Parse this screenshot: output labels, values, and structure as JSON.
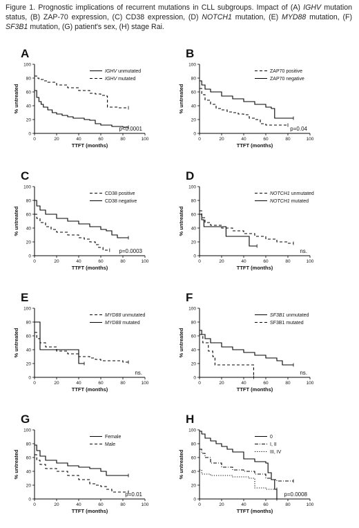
{
  "caption": {
    "parts": [
      {
        "t": "Figure 1. Prognostic implications of recurrent mutations in CLL subgroups. Impact of (A) ",
        "i": false
      },
      {
        "t": "IGHV",
        "i": true
      },
      {
        "t": " mutation status, (B) ZAP-70 expression, (C) CD38 expression, (D) ",
        "i": false
      },
      {
        "t": "NOTCH1",
        "i": true
      },
      {
        "t": " mutation, (E) ",
        "i": false
      },
      {
        "t": "MYD88",
        "i": true
      },
      {
        "t": " mutation, (F) ",
        "i": false
      },
      {
        "t": "SF3B1",
        "i": true
      },
      {
        "t": " mutation, (G) patient's sex, (H) stage Rai.",
        "i": false
      }
    ]
  },
  "chart_data": [
    {
      "type": "line",
      "panel": "A",
      "xlabel": "TTFT (months)",
      "ylabel": "% untreated",
      "xlim": [
        0,
        100
      ],
      "ylim": [
        0,
        100
      ],
      "xticks": [
        "0",
        "20",
        "40",
        "60",
        "80",
        "100"
      ],
      "yticks": [
        "0",
        "20",
        "40",
        "60",
        "80",
        "100"
      ],
      "pvalue": "p<0.0001",
      "series": [
        {
          "name": "IGHV unmutated",
          "name_parts": [
            {
              "t": "IGHV",
              "i": true
            },
            {
              "t": " unmutated",
              "i": false
            }
          ],
          "style": "solid",
          "x": [
            0,
            2,
            4,
            6,
            8,
            12,
            16,
            20,
            25,
            30,
            35,
            40,
            45,
            50,
            55,
            60,
            65,
            70,
            75,
            80,
            85
          ],
          "y": [
            62,
            52,
            46,
            42,
            38,
            34,
            30,
            28,
            26,
            24,
            22,
            22,
            20,
            19,
            14,
            12,
            12,
            10,
            10,
            9,
            9
          ]
        },
        {
          "name": "IGHV mutated",
          "name_parts": [
            {
              "t": "IGHV",
              "i": true
            },
            {
              "t": " mutated",
              "i": false
            }
          ],
          "style": "dashed",
          "x": [
            0,
            2,
            4,
            8,
            12,
            20,
            30,
            40,
            50,
            55,
            60,
            65,
            66,
            70,
            75,
            80,
            85
          ],
          "y": [
            83,
            80,
            78,
            76,
            74,
            70,
            66,
            62,
            58,
            57,
            55,
            54,
            38,
            38,
            37,
            37,
            37
          ]
        }
      ]
    },
    {
      "type": "line",
      "panel": "B",
      "xlabel": "TTFT (months)",
      "ylabel": "% untreated",
      "xlim": [
        0,
        100
      ],
      "ylim": [
        0,
        100
      ],
      "xticks": [
        "0",
        "20",
        "40",
        "60",
        "80",
        "100"
      ],
      "yticks": [
        "0",
        "20",
        "40",
        "60",
        "80",
        "100"
      ],
      "pvalue": "p=0.04",
      "series": [
        {
          "name": "ZAP70 positive",
          "name_parts": [
            {
              "t": "ZAP70 positive",
              "i": false
            }
          ],
          "style": "dashed",
          "x": [
            0,
            2,
            5,
            10,
            15,
            20,
            25,
            30,
            35,
            40,
            45,
            50,
            55,
            60,
            70,
            80
          ],
          "y": [
            65,
            56,
            48,
            42,
            36,
            34,
            31,
            30,
            28,
            27,
            22,
            20,
            14,
            12,
            12,
            12
          ]
        },
        {
          "name": "ZAP70 negative",
          "name_parts": [
            {
              "t": "ZAP70 negative",
              "i": false
            }
          ],
          "style": "solid",
          "x": [
            0,
            2,
            5,
            10,
            20,
            30,
            40,
            50,
            60,
            65,
            68,
            75,
            85
          ],
          "y": [
            76,
            70,
            64,
            60,
            54,
            50,
            46,
            42,
            38,
            36,
            22,
            22,
            22
          ]
        }
      ]
    },
    {
      "type": "line",
      "panel": "C",
      "xlabel": "TTFT (months)",
      "ylabel": "% untreated",
      "xlim": [
        0,
        100
      ],
      "ylim": [
        0,
        100
      ],
      "xticks": [
        "0",
        "20",
        "40",
        "60",
        "80",
        "100"
      ],
      "yticks": [
        "0",
        "20",
        "40",
        "60",
        "80",
        "100"
      ],
      "pvalue": "p=0.0003",
      "series": [
        {
          "name": "CD38 positive",
          "name_parts": [
            {
              "t": "CD38 positive",
              "i": false
            }
          ],
          "style": "dashed",
          "x": [
            0,
            2,
            5,
            10,
            15,
            20,
            30,
            40,
            45,
            50,
            55,
            58,
            62,
            68
          ],
          "y": [
            60,
            54,
            48,
            42,
            38,
            34,
            30,
            26,
            24,
            20,
            16,
            12,
            8,
            8
          ]
        },
        {
          "name": "CD38 negative",
          "name_parts": [
            {
              "t": "CD38 negative",
              "i": false
            }
          ],
          "style": "solid",
          "x": [
            0,
            2,
            5,
            10,
            20,
            30,
            40,
            50,
            60,
            65,
            70,
            75,
            85
          ],
          "y": [
            80,
            72,
            66,
            60,
            54,
            50,
            46,
            42,
            38,
            36,
            30,
            26,
            26
          ]
        }
      ]
    },
    {
      "type": "line",
      "panel": "D",
      "xlabel": "TTFT (months)",
      "ylabel": "% untreated",
      "xlim": [
        0,
        100
      ],
      "ylim": [
        0,
        100
      ],
      "xticks": [
        "0",
        "20",
        "40",
        "60",
        "80",
        "100"
      ],
      "yticks": [
        "0",
        "20",
        "40",
        "60",
        "80",
        "100"
      ],
      "pvalue": "ns.",
      "series": [
        {
          "name": "NOTCH1 unmutated",
          "name_parts": [
            {
              "t": "NOTCH1",
              "i": true
            },
            {
              "t": " unmutated",
              "i": false
            }
          ],
          "style": "dashed",
          "x": [
            0,
            2,
            5,
            10,
            20,
            30,
            40,
            50,
            60,
            70,
            80,
            85
          ],
          "y": [
            65,
            55,
            48,
            44,
            40,
            36,
            32,
            28,
            24,
            20,
            18,
            18
          ]
        },
        {
          "name": "NOTCH1 mutated",
          "name_parts": [
            {
              "t": "NOTCH1",
              "i": true
            },
            {
              "t": " mutated",
              "i": false
            }
          ],
          "style": "solid",
          "x": [
            0,
            2,
            4,
            8,
            24,
            28,
            45,
            48,
            52
          ],
          "y": [
            60,
            52,
            42,
            42,
            28,
            28,
            14,
            14,
            14
          ]
        }
      ]
    },
    {
      "type": "line",
      "panel": "E",
      "xlabel": "TTFT (months)",
      "ylabel": "% untreated",
      "xlim": [
        0,
        100
      ],
      "ylim": [
        0,
        100
      ],
      "xticks": [
        "0",
        "20",
        "40",
        "60",
        "80",
        "100"
      ],
      "yticks": [
        "0",
        "20",
        "40",
        "60",
        "80",
        "100"
      ],
      "pvalue": "ns.",
      "series": [
        {
          "name": "MYD88 unmutated",
          "name_parts": [
            {
              "t": "MYD88",
              "i": true
            },
            {
              "t": " unmutated",
              "i": false
            }
          ],
          "style": "dashed",
          "x": [
            0,
            2,
            5,
            10,
            20,
            30,
            40,
            50,
            55,
            60,
            70,
            80,
            85
          ],
          "y": [
            65,
            56,
            50,
            44,
            38,
            34,
            30,
            28,
            26,
            24,
            24,
            22,
            22
          ]
        },
        {
          "name": "MYD88 mutated",
          "name_parts": [
            {
              "t": "MYD88",
              "i": true
            },
            {
              "t": " mutated",
              "i": false
            }
          ],
          "style": "solid",
          "x": [
            0,
            4,
            5,
            38,
            40,
            45
          ],
          "y": [
            80,
            80,
            40,
            40,
            20,
            20
          ]
        }
      ]
    },
    {
      "type": "line",
      "panel": "F",
      "xlabel": "TTFT (months)",
      "ylabel": "% untreated",
      "xlim": [
        0,
        100
      ],
      "ylim": [
        0,
        100
      ],
      "xticks": [
        "0",
        "20",
        "40",
        "60",
        "80",
        "100"
      ],
      "yticks": [
        "0",
        "20",
        "40",
        "60",
        "80",
        "100"
      ],
      "pvalue": "ns.",
      "series": [
        {
          "name": "SF3B1 unmutated",
          "name_parts": [
            {
              "t": "SF3B1",
              "i": true
            },
            {
              "t": " unmutated",
              "i": false
            }
          ],
          "style": "solid",
          "x": [
            0,
            2,
            5,
            10,
            20,
            30,
            40,
            50,
            60,
            70,
            75,
            85
          ],
          "y": [
            68,
            62,
            56,
            50,
            44,
            40,
            36,
            32,
            28,
            24,
            18,
            18
          ]
        },
        {
          "name": "SF3B1 mutated",
          "name_parts": [
            {
              "t": "SF3B1 mutated",
              "i": false
            }
          ],
          "style": "dashed",
          "x": [
            0,
            3,
            8,
            12,
            14,
            48,
            49
          ],
          "y": [
            62,
            50,
            38,
            30,
            18,
            18,
            0
          ]
        }
      ]
    },
    {
      "type": "line",
      "panel": "G",
      "xlabel": "TTFT (months)",
      "ylabel": "% untreated",
      "xlim": [
        0,
        100
      ],
      "ylim": [
        0,
        100
      ],
      "xticks": [
        "0",
        "20",
        "40",
        "60",
        "80",
        "100"
      ],
      "yticks": [
        "0",
        "20",
        "40",
        "60",
        "80",
        "100"
      ],
      "pvalue": "p=0.01",
      "series": [
        {
          "name": "Female",
          "name_parts": [
            {
              "t": "Female",
              "i": false
            }
          ],
          "style": "solid",
          "x": [
            0,
            2,
            5,
            10,
            20,
            30,
            40,
            50,
            60,
            65,
            70,
            85
          ],
          "y": [
            78,
            70,
            62,
            56,
            52,
            48,
            46,
            44,
            40,
            34,
            34,
            34
          ]
        },
        {
          "name": "Male",
          "name_parts": [
            {
              "t": "Male",
              "i": false
            }
          ],
          "style": "dashed",
          "x": [
            0,
            2,
            5,
            10,
            20,
            30,
            40,
            50,
            55,
            60,
            65,
            70,
            85
          ],
          "y": [
            64,
            56,
            50,
            44,
            40,
            34,
            28,
            22,
            20,
            18,
            14,
            10,
            10
          ]
        }
      ]
    },
    {
      "type": "line",
      "panel": "H",
      "xlabel": "TTFT (months)",
      "ylabel": "% untreated",
      "xlim": [
        0,
        100
      ],
      "ylim": [
        0,
        100
      ],
      "xticks": [
        "0",
        "20",
        "40",
        "60",
        "80",
        "100"
      ],
      "yticks": [
        "0",
        "20",
        "40",
        "60",
        "80",
        "100"
      ],
      "pvalue": "p=0.0008",
      "series": [
        {
          "name": "0",
          "name_parts": [
            {
              "t": "0",
              "i": false
            }
          ],
          "style": "solid",
          "x": [
            0,
            2,
            5,
            10,
            15,
            20,
            25,
            30,
            40,
            50,
            60,
            62,
            65,
            68,
            70
          ],
          "y": [
            98,
            94,
            88,
            84,
            80,
            76,
            72,
            68,
            58,
            54,
            52,
            38,
            28,
            14,
            0
          ]
        },
        {
          "name": "I, II",
          "name_parts": [
            {
              "t": "I, II",
              "i": false
            }
          ],
          "style": "dashdot",
          "x": [
            0,
            2,
            5,
            10,
            20,
            30,
            40,
            50,
            60,
            65,
            70,
            80,
            85
          ],
          "y": [
            72,
            66,
            60,
            52,
            46,
            42,
            40,
            36,
            30,
            28,
            26,
            26,
            26
          ]
        },
        {
          "name": "III, IV",
          "name_parts": [
            {
              "t": "III, IV",
              "i": false
            }
          ],
          "style": "dotted",
          "x": [
            0,
            2,
            10,
            20,
            30,
            45,
            50,
            60,
            70
          ],
          "y": [
            42,
            36,
            34,
            34,
            32,
            30,
            16,
            14,
            14
          ]
        }
      ]
    }
  ]
}
